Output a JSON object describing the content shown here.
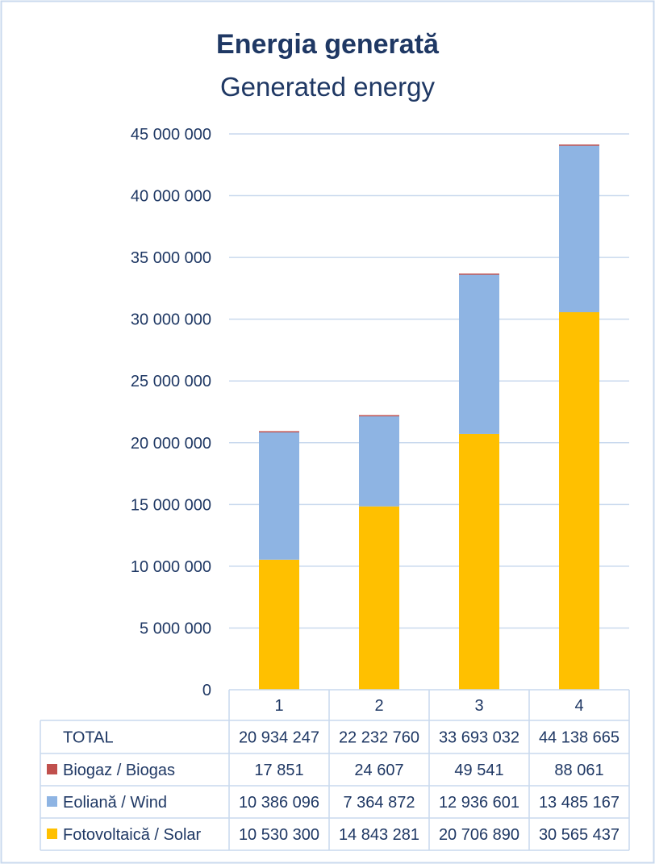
{
  "colors": {
    "title": "#1F3864",
    "axis_text": "#1F3864",
    "grid": "#C9D9EE",
    "border": "#C9D9EE",
    "solar": "#FFC000",
    "wind": "#8EB4E3",
    "biogas": "#C0504D"
  },
  "chart_data": {
    "type": "bar",
    "stacked": true,
    "title": "Energia generată",
    "subtitle": "Generated energy",
    "categories": [
      "1",
      "2",
      "3",
      "4"
    ],
    "ylim": [
      0,
      45000000
    ],
    "yticks": [
      0,
      5000000,
      10000000,
      15000000,
      20000000,
      25000000,
      30000000,
      35000000,
      40000000,
      45000000
    ],
    "ytick_labels": [
      "0",
      "5 000 000",
      "10 000 000",
      "15 000 000",
      "20 000 000",
      "25 000 000",
      "30 000 000",
      "35 000 000",
      "40 000 000",
      "45 000 000"
    ],
    "grid": true,
    "legend_placement": "data-table",
    "series": [
      {
        "name": "Fotovoltaică / Solar",
        "color_key": "solar",
        "values": [
          10530300,
          14843281,
          20706890,
          30565437
        ],
        "labels": [
          "10 530 300",
          "14 843 281",
          "20 706 890",
          "30 565 437"
        ]
      },
      {
        "name": "Eoliană / Wind",
        "color_key": "wind",
        "values": [
          10386096,
          7364872,
          12936601,
          13485167
        ],
        "labels": [
          "10 386 096",
          "7 364 872",
          "12 936 601",
          "13 485 167"
        ]
      },
      {
        "name": "Biogaz / Biogas",
        "color_key": "biogas",
        "values": [
          17851,
          24607,
          49541,
          88061
        ],
        "labels": [
          "17 851",
          "24 607",
          "49 541",
          "88 061"
        ]
      }
    ],
    "total": {
      "name": "TOTAL",
      "values": [
        20934247,
        22232760,
        33693032,
        44138665
      ],
      "labels": [
        "20 934 247",
        "22 232 760",
        "33 693 032",
        "44 138 665"
      ]
    }
  }
}
